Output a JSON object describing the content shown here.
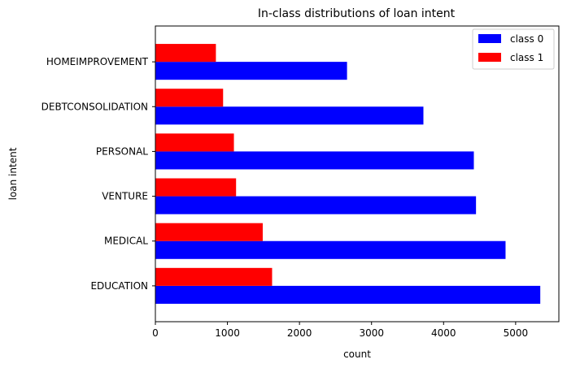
{
  "chart_data": {
    "type": "bar",
    "orientation": "horizontal",
    "title": "In-class distributions of loan intent",
    "xlabel": "count",
    "ylabel": "loan intent",
    "categories": [
      "EDUCATION",
      "MEDICAL",
      "VENTURE",
      "PERSONAL",
      "DEBTCONSOLIDATION",
      "HOMEIMPROVEMENT"
    ],
    "series": [
      {
        "name": "class 0",
        "color": "#0000ff",
        "values": [
          5342,
          4860,
          4450,
          4420,
          3720,
          2660
        ]
      },
      {
        "name": "class 1",
        "color": "#ff0000",
        "values": [
          1620,
          1490,
          1120,
          1090,
          940,
          840
        ]
      }
    ],
    "xlim": [
      0,
      5600
    ],
    "xticks": [
      0,
      1000,
      2000,
      3000,
      4000,
      5000
    ],
    "grid": false,
    "legend_position": "top-right"
  }
}
